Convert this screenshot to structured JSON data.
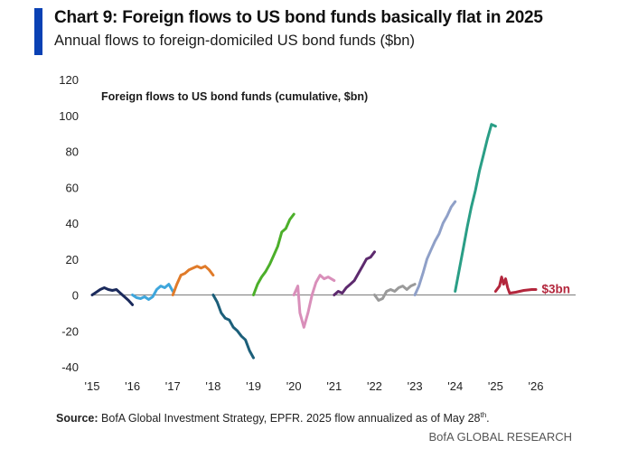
{
  "header": {
    "title": "Chart 9: Foreign flows to US bond funds basically flat in 2025",
    "subtitle": "Annual flows to foreign-domiciled US bond funds ($bn)"
  },
  "footer": {
    "source_label": "Source:",
    "source_text": "BofA Global Investment Strategy, EPFR. 2025 flow annualized as of May 28",
    "source_sup": "th",
    "source_end": ".",
    "brand": "BofA GLOBAL RESEARCH"
  },
  "chart_data": {
    "type": "line",
    "title": "Foreign flows to US bond funds (cumulative, $bn)",
    "xlabel": "",
    "ylabel": "",
    "xlim": [
      2015,
      2026
    ],
    "ylim": [
      -40,
      120
    ],
    "y_ticks": [
      120,
      100,
      80,
      60,
      40,
      20,
      0,
      -20,
      -40
    ],
    "x_ticks": [
      {
        "value": 2015,
        "label": "'15"
      },
      {
        "value": 2016,
        "label": "'16"
      },
      {
        "value": 2017,
        "label": "'17"
      },
      {
        "value": 2018,
        "label": "'18"
      },
      {
        "value": 2019,
        "label": "'19"
      },
      {
        "value": 2020,
        "label": "'20"
      },
      {
        "value": 2021,
        "label": "'21"
      },
      {
        "value": 2022,
        "label": "'22"
      },
      {
        "value": 2023,
        "label": "'23"
      },
      {
        "value": 2024,
        "label": "'24"
      },
      {
        "value": 2025,
        "label": "'25"
      },
      {
        "value": 2026,
        "label": "'26"
      }
    ],
    "zero_line_color": "#8c8c8c",
    "series": [
      {
        "name": "2015",
        "color": "#1b2a5c",
        "points": [
          [
            2015.0,
            0
          ],
          [
            2015.1,
            1.5
          ],
          [
            2015.2,
            3
          ],
          [
            2015.3,
            4
          ],
          [
            2015.4,
            3
          ],
          [
            2015.5,
            2.5
          ],
          [
            2015.6,
            3
          ],
          [
            2015.7,
            1
          ],
          [
            2015.8,
            -1
          ],
          [
            2015.9,
            -3
          ],
          [
            2016.0,
            -5.5
          ]
        ]
      },
      {
        "name": "2016",
        "color": "#3ea6dc",
        "points": [
          [
            2016.0,
            0
          ],
          [
            2016.1,
            -1.5
          ],
          [
            2016.2,
            -2
          ],
          [
            2016.3,
            -1
          ],
          [
            2016.4,
            -2.5
          ],
          [
            2016.5,
            -1
          ],
          [
            2016.6,
            3
          ],
          [
            2016.7,
            5
          ],
          [
            2016.8,
            4
          ],
          [
            2016.9,
            6
          ],
          [
            2017.0,
            2
          ]
        ]
      },
      {
        "name": "2017",
        "color": "#e07b2a",
        "points": [
          [
            2017.0,
            0
          ],
          [
            2017.1,
            6
          ],
          [
            2017.2,
            11
          ],
          [
            2017.3,
            12
          ],
          [
            2017.4,
            14
          ],
          [
            2017.5,
            15
          ],
          [
            2017.6,
            16
          ],
          [
            2017.7,
            15
          ],
          [
            2017.8,
            16
          ],
          [
            2017.9,
            14
          ],
          [
            2018.0,
            11
          ]
        ]
      },
      {
        "name": "2018",
        "color": "#1c5f7a",
        "points": [
          [
            2018.0,
            0
          ],
          [
            2018.1,
            -4
          ],
          [
            2018.2,
            -10
          ],
          [
            2018.3,
            -13
          ],
          [
            2018.4,
            -14
          ],
          [
            2018.5,
            -18
          ],
          [
            2018.6,
            -20
          ],
          [
            2018.7,
            -23
          ],
          [
            2018.8,
            -25
          ],
          [
            2018.9,
            -31
          ],
          [
            2019.0,
            -35
          ]
        ]
      },
      {
        "name": "2019",
        "color": "#4caf2a",
        "points": [
          [
            2019.0,
            0
          ],
          [
            2019.1,
            6
          ],
          [
            2019.2,
            10
          ],
          [
            2019.3,
            13
          ],
          [
            2019.4,
            17
          ],
          [
            2019.5,
            22
          ],
          [
            2019.6,
            27
          ],
          [
            2019.7,
            35
          ],
          [
            2019.8,
            37
          ],
          [
            2019.9,
            42
          ],
          [
            2020.0,
            45
          ]
        ]
      },
      {
        "name": "2020",
        "color": "#d98fba",
        "points": [
          [
            2020.0,
            0
          ],
          [
            2020.1,
            5
          ],
          [
            2020.15,
            -10
          ],
          [
            2020.25,
            -18
          ],
          [
            2020.35,
            -10
          ],
          [
            2020.45,
            0
          ],
          [
            2020.55,
            7
          ],
          [
            2020.65,
            11
          ],
          [
            2020.75,
            9
          ],
          [
            2020.85,
            10
          ],
          [
            2021.0,
            8
          ]
        ]
      },
      {
        "name": "2021",
        "color": "#5d2a6e",
        "points": [
          [
            2021.0,
            0
          ],
          [
            2021.1,
            2
          ],
          [
            2021.2,
            1
          ],
          [
            2021.3,
            4
          ],
          [
            2021.4,
            6
          ],
          [
            2021.5,
            8
          ],
          [
            2021.6,
            12
          ],
          [
            2021.7,
            16
          ],
          [
            2021.8,
            20
          ],
          [
            2021.9,
            21
          ],
          [
            2022.0,
            24
          ]
        ]
      },
      {
        "name": "2022",
        "color": "#9a9a9a",
        "points": [
          [
            2022.0,
            0
          ],
          [
            2022.1,
            -3
          ],
          [
            2022.2,
            -2
          ],
          [
            2022.3,
            2
          ],
          [
            2022.4,
            3
          ],
          [
            2022.5,
            2
          ],
          [
            2022.6,
            4
          ],
          [
            2022.7,
            5
          ],
          [
            2022.8,
            3
          ],
          [
            2022.9,
            5
          ],
          [
            2023.0,
            6
          ]
        ]
      },
      {
        "name": "2023",
        "color": "#8fa0c8",
        "points": [
          [
            2023.0,
            0
          ],
          [
            2023.1,
            5
          ],
          [
            2023.2,
            12
          ],
          [
            2023.3,
            20
          ],
          [
            2023.4,
            25
          ],
          [
            2023.5,
            30
          ],
          [
            2023.6,
            34
          ],
          [
            2023.7,
            40
          ],
          [
            2023.8,
            44
          ],
          [
            2023.9,
            49
          ],
          [
            2024.0,
            52
          ]
        ]
      },
      {
        "name": "2024",
        "color": "#2a9e86",
        "points": [
          [
            2024.0,
            2
          ],
          [
            2024.1,
            14
          ],
          [
            2024.2,
            26
          ],
          [
            2024.3,
            38
          ],
          [
            2024.4,
            49
          ],
          [
            2024.5,
            58
          ],
          [
            2024.6,
            69
          ],
          [
            2024.7,
            78
          ],
          [
            2024.8,
            87
          ],
          [
            2024.9,
            95
          ],
          [
            2025.0,
            94
          ]
        ]
      },
      {
        "name": "2025",
        "color": "#b3263c",
        "points": [
          [
            2025.0,
            2
          ],
          [
            2025.1,
            5
          ],
          [
            2025.15,
            10
          ],
          [
            2025.2,
            6
          ],
          [
            2025.25,
            9
          ],
          [
            2025.3,
            4
          ],
          [
            2025.35,
            1
          ],
          [
            2025.5,
            1.5
          ],
          [
            2025.7,
            2.5
          ],
          [
            2025.9,
            3
          ],
          [
            2026.0,
            3
          ]
        ]
      }
    ],
    "annotations": [
      {
        "text": "$3bn",
        "x": 2026.1,
        "y": 3,
        "color": "#b3263c"
      }
    ]
  }
}
